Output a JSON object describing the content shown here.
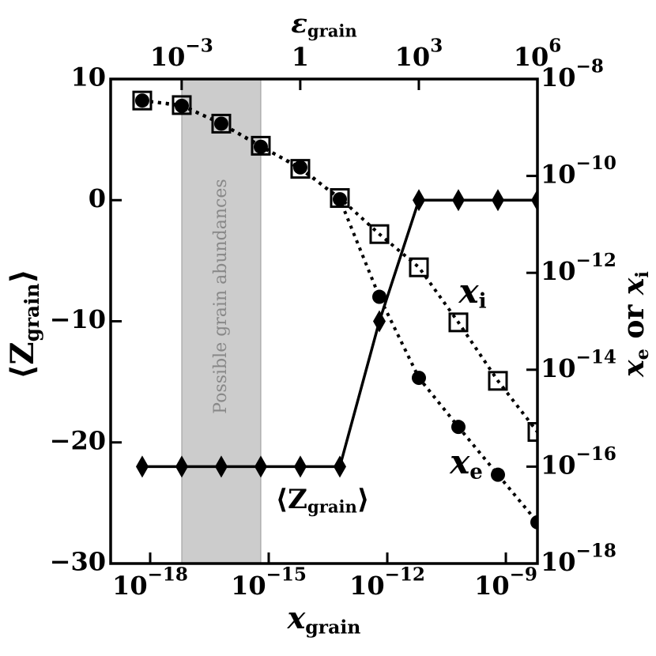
{
  "chart_data": {
    "type": "line",
    "xlabel": [
      {
        "text": "x"
      },
      {
        "sub": "grain"
      }
    ],
    "x2label": [
      {
        "text": "ε"
      },
      {
        "sub": "grain"
      }
    ],
    "ylabel": [
      {
        "text": "⟨Z"
      },
      {
        "sub": "grain"
      },
      {
        "text": "⟩"
      }
    ],
    "y2label": [
      {
        "text": "x"
      },
      {
        "sub": "e"
      },
      {
        "text": " or "
      },
      {
        "text": "x"
      },
      {
        "sub": "i"
      }
    ],
    "xlog": true,
    "y2log": true,
    "xlim": [
      1e-19,
      6.3e-09
    ],
    "xticks": [
      {
        "value": 1e-18,
        "label": "10−18"
      },
      {
        "value": 1e-15,
        "label": "10−15"
      },
      {
        "value": 1e-12,
        "label": "10−12"
      },
      {
        "value": 1e-09,
        "label": "10−9"
      }
    ],
    "x2lim": [
      1.6e-05,
      1000000
    ],
    "x2ticks": [
      {
        "value": 0.001,
        "label": "10−3"
      },
      1,
      {
        "value": 1000,
        "label": "103"
      },
      {
        "value": 1000000,
        "label": "106"
      }
    ],
    "ylim": [
      -30,
      10
    ],
    "yticks": [
      10,
      0,
      {
        "value": -10,
        "label": "−10"
      },
      {
        "value": -20,
        "label": "−20"
      },
      {
        "value": -30,
        "label": "−30"
      }
    ],
    "y2lim": [
      1e-18,
      1e-08
    ],
    "y2ticks": [
      {
        "value": 1e-08,
        "label": "10−8"
      },
      {
        "value": 1e-10,
        "label": "10−10"
      },
      {
        "value": 1e-12,
        "label": "10−12"
      },
      {
        "value": 1e-14,
        "label": "10−14"
      },
      {
        "value": 1e-16,
        "label": "10−16"
      },
      {
        "value": 1e-18,
        "label": "10−18"
      }
    ],
    "x": [
      6.3e-19,
      6.3e-18,
      6.3e-17,
      6.3e-16,
      6.3e-15,
      6.3e-14,
      6.3e-13,
      6.3e-12,
      6.3e-11,
      6.3e-10,
      6.3e-09
    ],
    "series": [
      {
        "color": "#000000",
        "line": "solid",
        "marker": "diamond",
        "values": [
          -22,
          -22,
          -22,
          -22,
          -22,
          -22,
          -10,
          0,
          0,
          0,
          0
        ]
      },
      {
        "color": "#000000",
        "line": "dotted",
        "marker": "circle",
        "axis": "y2",
        "values": [
          3.6e-09,
          2.8e-09,
          1.2e-09,
          4e-10,
          1.5e-10,
          3.3e-11,
          3.2e-13,
          6.8e-15,
          6.6e-16,
          6.8e-17,
          7.1e-18
        ]
      },
      {
        "color": "#000000",
        "line": "dotted",
        "marker": "square",
        "axis": "y2",
        "values": [
          3.6e-09,
          2.9e-09,
          1.2e-09,
          4.2e-10,
          1.4e-10,
          3.5e-11,
          6.3e-12,
          1.3e-12,
          9.5e-14,
          5.9e-15,
          5.2e-16
        ]
      }
    ],
    "band": {
      "x": [
        6.3e-18,
        6.3e-16
      ],
      "color": "#cccccc",
      "label": "Possible grain abundances"
    },
    "annotations": [
      [
        {
          "text": "x"
        },
        {
          "sub": "i"
        }
      ],
      [
        {
          "text": "x"
        },
        {
          "sub": "e"
        }
      ],
      [
        {
          "text": "⟨Z"
        },
        {
          "sub": "grain"
        },
        {
          "text": "⟩"
        }
      ]
    ]
  }
}
